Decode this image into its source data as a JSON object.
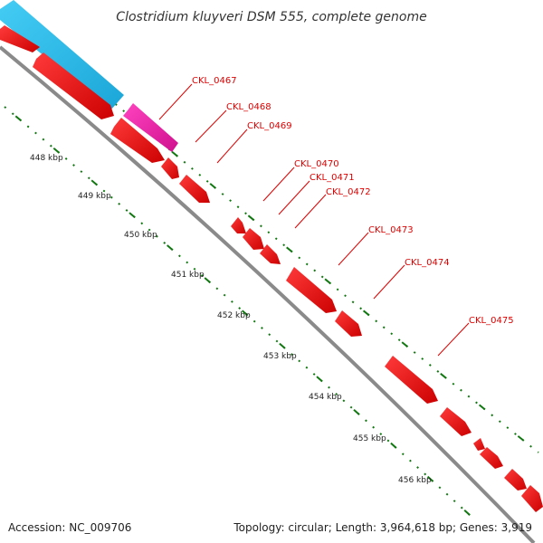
{
  "title": "Clostridium kluyveri DSM 555, complete genome",
  "accession": "Accession: NC_009706",
  "topology": "Topology: circular; Length: 3,964,618 bp; Genes: 3,919",
  "kbp_labels": [
    "448 kbp",
    "449 kbp",
    "450 kbp",
    "451 kbp",
    "452 kbp",
    "453 kbp",
    "454 kbp",
    "455 kbp",
    "456 kbp"
  ],
  "gene_labels": [
    "CKL_0467",
    "CKL_0468",
    "CKL_0469",
    "CKL_0470",
    "CKL_0471",
    "CKL_0472",
    "CKL_0473",
    "CKL_0474",
    "CKL_0475"
  ],
  "colors": {
    "gene": "#ee0000",
    "blue_feature": "#22bbee",
    "magenta_feature": "#ee22aa",
    "backbone": "#8a8a8a",
    "tick": "#117711",
    "label": "#dd0000"
  }
}
